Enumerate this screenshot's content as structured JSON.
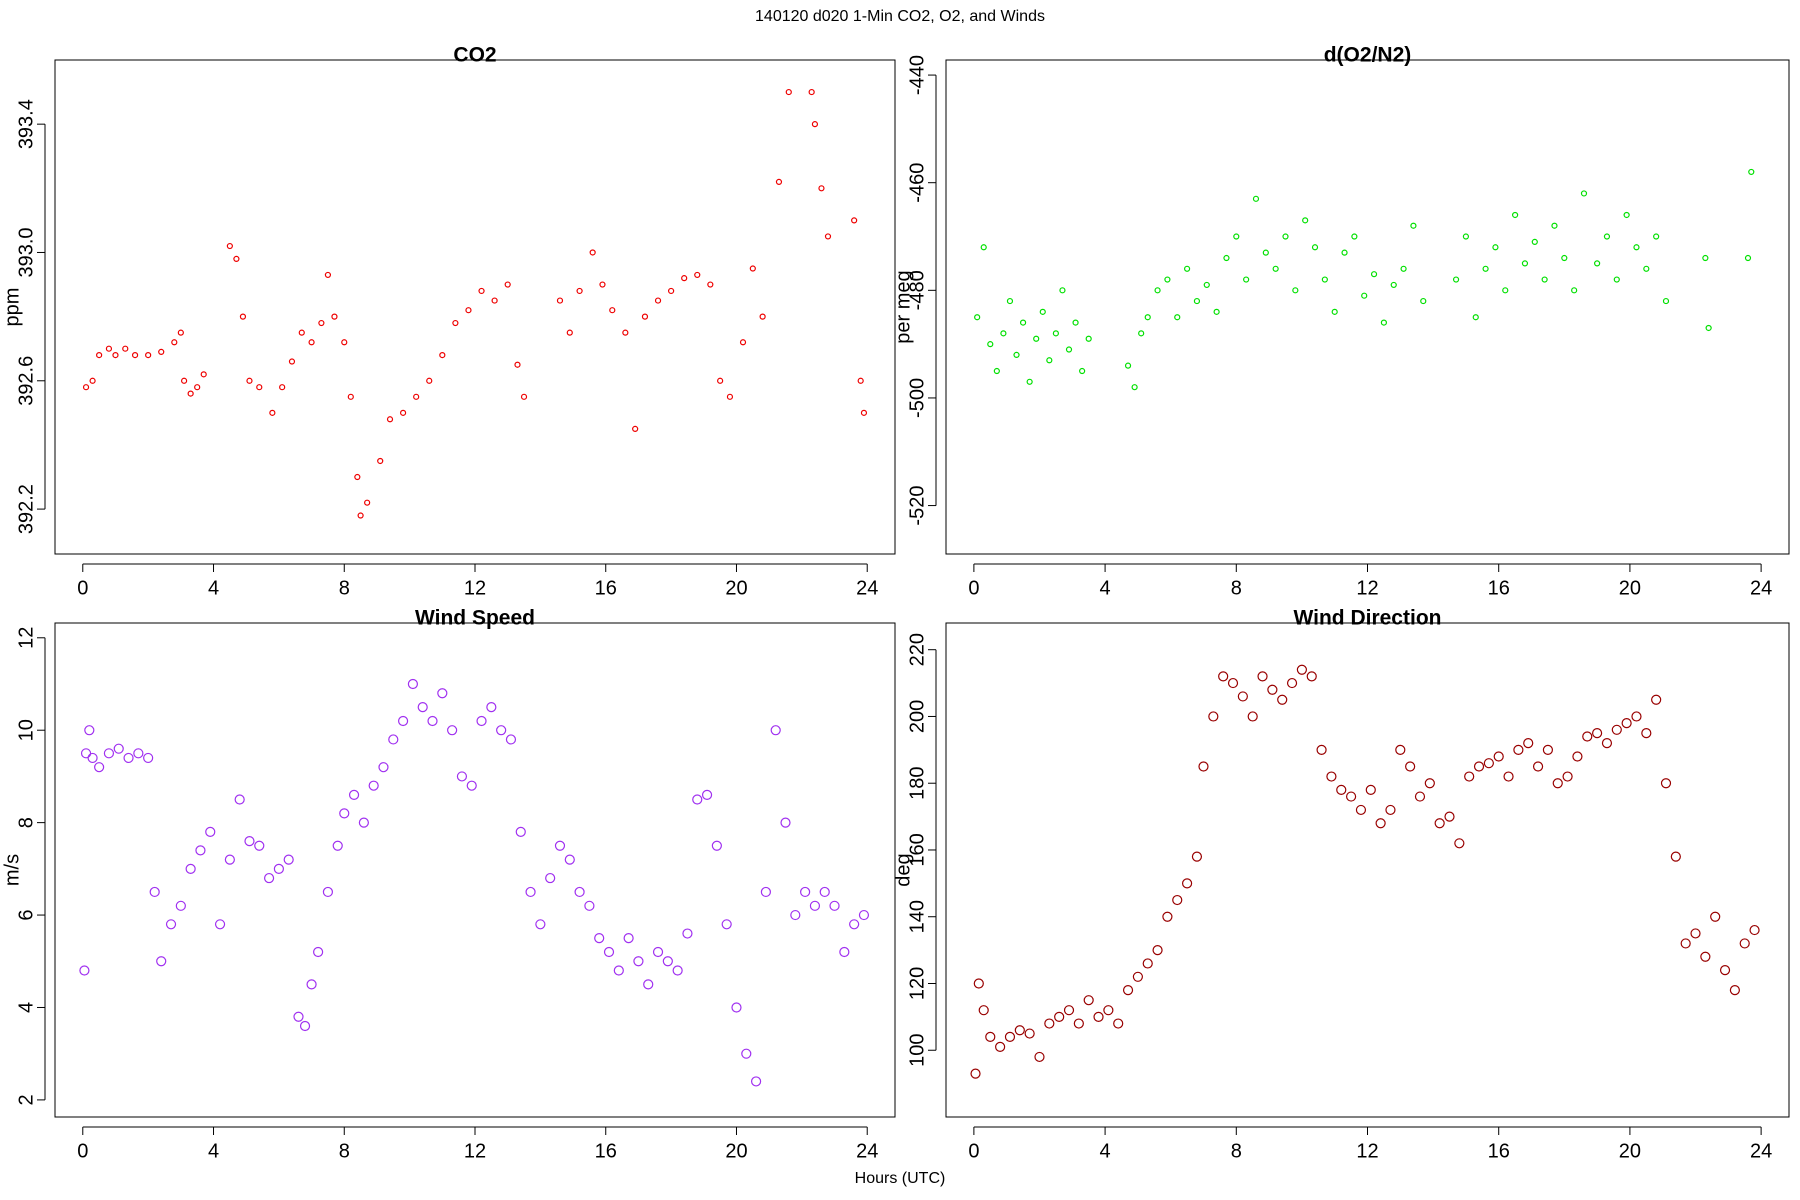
{
  "title": "140120   d020   1-Min CO2, O2, and Winds",
  "x_label": "Hours (UTC)",
  "chart_data": [
    {
      "type": "scatter",
      "title": "CO2",
      "y_label": "ppm",
      "color": "#ee0000",
      "xlim": [
        -0.85,
        24.85
      ],
      "xticks": [
        0,
        4,
        8,
        12,
        16,
        20,
        24
      ],
      "ylim": [
        392.06,
        393.6
      ],
      "yticks": [
        392.2,
        392.6,
        {
          "value": 393,
          "label": "393.0"
        },
        393.4
      ],
      "x": [
        0.1,
        0.3,
        0.5,
        0.8,
        1.0,
        1.3,
        1.6,
        2.0,
        2.4,
        2.8,
        3.0,
        3.1,
        3.3,
        3.5,
        3.7,
        4.5,
        4.7,
        4.9,
        5.1,
        5.4,
        5.8,
        6.1,
        6.4,
        6.7,
        7.0,
        7.3,
        7.5,
        7.7,
        8.0,
        8.2,
        8.4,
        8.5,
        8.7,
        9.1,
        9.4,
        9.8,
        10.2,
        10.6,
        11.0,
        11.4,
        11.8,
        12.2,
        12.6,
        13.0,
        13.3,
        13.5,
        14.6,
        14.9,
        15.2,
        15.6,
        15.9,
        16.2,
        16.6,
        16.9,
        17.2,
        17.6,
        18.0,
        18.4,
        18.8,
        19.2,
        19.5,
        19.8,
        20.2,
        20.5,
        20.8,
        21.3,
        21.6,
        22.3,
        22.4,
        22.6,
        22.8,
        23.6,
        23.8,
        23.9
      ],
      "values": [
        392.58,
        392.6,
        392.68,
        392.7,
        392.68,
        392.7,
        392.68,
        392.68,
        392.69,
        392.72,
        392.75,
        392.6,
        392.56,
        392.58,
        392.62,
        393.02,
        392.98,
        392.8,
        392.6,
        392.58,
        392.5,
        392.58,
        392.66,
        392.75,
        392.72,
        392.78,
        392.93,
        392.8,
        392.72,
        392.55,
        392.3,
        392.18,
        392.22,
        392.35,
        392.48,
        392.5,
        392.55,
        392.6,
        392.68,
        392.78,
        392.82,
        392.88,
        392.85,
        392.9,
        392.65,
        392.55,
        392.85,
        392.75,
        392.88,
        393.0,
        392.9,
        392.82,
        392.75,
        392.45,
        392.8,
        392.85,
        392.88,
        392.92,
        392.93,
        392.9,
        392.6,
        392.55,
        392.72,
        392.95,
        392.8,
        393.22,
        393.5,
        393.5,
        393.4,
        393.2,
        393.05,
        393.1,
        392.6,
        392.5
      ]
    },
    {
      "type": "scatter",
      "title": "d(O2/N2)",
      "y_label": "per meg",
      "color": "#00e000",
      "xlim": [
        -0.85,
        24.85
      ],
      "xticks": [
        0,
        4,
        8,
        12,
        16,
        20,
        24
      ],
      "ylim": [
        -529,
        -437.2
      ],
      "yticks": [
        -520,
        -500,
        -480,
        -460,
        -440
      ],
      "x": [
        0.1,
        0.3,
        0.5,
        0.7,
        0.9,
        1.1,
        1.3,
        1.5,
        1.7,
        1.9,
        2.1,
        2.3,
        2.5,
        2.7,
        2.9,
        3.1,
        3.3,
        3.5,
        4.7,
        4.9,
        5.1,
        5.3,
        5.6,
        5.9,
        6.2,
        6.5,
        6.8,
        7.1,
        7.4,
        7.7,
        8.0,
        8.3,
        8.6,
        8.9,
        9.2,
        9.5,
        9.8,
        10.1,
        10.4,
        10.7,
        11.0,
        11.3,
        11.6,
        11.9,
        12.2,
        12.5,
        12.8,
        13.1,
        13.4,
        13.7,
        14.7,
        15.0,
        15.3,
        15.6,
        15.9,
        16.2,
        16.5,
        16.8,
        17.1,
        17.4,
        17.7,
        18.0,
        18.3,
        18.6,
        19.0,
        19.3,
        19.6,
        19.9,
        20.2,
        20.5,
        20.8,
        21.1,
        22.3,
        22.4,
        23.6,
        23.7
      ],
      "values": [
        -485,
        -472,
        -490,
        -495,
        -488,
        -482,
        -492,
        -486,
        -497,
        -489,
        -484,
        -493,
        -488,
        -480,
        -491,
        -486,
        -495,
        -489,
        -494,
        -498,
        -488,
        -485,
        -480,
        -478,
        -485,
        -476,
        -482,
        -479,
        -484,
        -474,
        -470,
        -478,
        -463,
        -473,
        -476,
        -470,
        -480,
        -467,
        -472,
        -478,
        -484,
        -473,
        -470,
        -481,
        -477,
        -486,
        -479,
        -476,
        -468,
        -482,
        -478,
        -470,
        -485,
        -476,
        -472,
        -480,
        -466,
        -475,
        -471,
        -478,
        -468,
        -474,
        -480,
        -462,
        -475,
        -470,
        -478,
        -466,
        -472,
        -476,
        -470,
        -482,
        -474,
        -487,
        -474,
        -458
      ]
    },
    {
      "type": "scatter",
      "title": "Wind Speed",
      "y_label": "m/s",
      "color": "#a030f0",
      "xlim": [
        -0.85,
        24.85
      ],
      "xticks": [
        0,
        4,
        8,
        12,
        16,
        20,
        24
      ],
      "ylim": [
        1.63,
        12.32
      ],
      "yticks": [
        2,
        4,
        6,
        8,
        10,
        12
      ],
      "x": [
        0.05,
        0.1,
        0.2,
        0.3,
        0.5,
        0.8,
        1.1,
        1.4,
        1.7,
        2.0,
        2.2,
        2.4,
        2.7,
        3.0,
        3.3,
        3.6,
        3.9,
        4.2,
        4.5,
        4.8,
        5.1,
        5.4,
        5.7,
        6.0,
        6.3,
        6.6,
        6.8,
        7.0,
        7.2,
        7.5,
        7.8,
        8.0,
        8.3,
        8.6,
        8.9,
        9.2,
        9.5,
        9.8,
        10.1,
        10.4,
        10.7,
        11.0,
        11.3,
        11.6,
        11.9,
        12.2,
        12.5,
        12.8,
        13.1,
        13.4,
        13.7,
        14.0,
        14.3,
        14.6,
        14.9,
        15.2,
        15.5,
        15.8,
        16.1,
        16.4,
        16.7,
        17.0,
        17.3,
        17.6,
        17.9,
        18.2,
        18.5,
        18.8,
        19.1,
        19.4,
        19.7,
        20.0,
        20.3,
        20.6,
        20.9,
        21.2,
        21.5,
        21.8,
        22.1,
        22.4,
        22.7,
        23.0,
        23.3,
        23.6,
        23.9
      ],
      "values": [
        4.8,
        9.5,
        10.0,
        9.4,
        9.2,
        9.5,
        9.6,
        9.4,
        9.5,
        9.4,
        6.5,
        5.0,
        5.8,
        6.2,
        7.0,
        7.4,
        7.8,
        5.8,
        7.2,
        8.5,
        7.6,
        7.5,
        6.8,
        7.0,
        7.2,
        3.8,
        3.6,
        4.5,
        5.2,
        6.5,
        7.5,
        8.2,
        8.6,
        8.0,
        8.8,
        9.2,
        9.8,
        10.2,
        11.0,
        10.5,
        10.2,
        10.8,
        10.0,
        9.0,
        8.8,
        10.2,
        10.5,
        10.0,
        9.8,
        7.8,
        6.5,
        5.8,
        6.8,
        7.5,
        7.2,
        6.5,
        6.2,
        5.5,
        5.2,
        4.8,
        5.5,
        5.0,
        4.5,
        5.2,
        5.0,
        4.8,
        5.6,
        8.5,
        8.6,
        7.5,
        5.8,
        4.0,
        3.0,
        2.4,
        6.5,
        10.0,
        8.0,
        6.0,
        6.5,
        6.2,
        6.5,
        6.2,
        5.2,
        5.8,
        6.0
      ]
    },
    {
      "type": "scatter",
      "title": "Wind Direction",
      "y_label": "deg",
      "color": "#990000",
      "xlim": [
        -0.85,
        24.85
      ],
      "xticks": [
        0,
        4,
        8,
        12,
        16,
        20,
        24
      ],
      "ylim": [
        80,
        228
      ],
      "yticks": [
        100,
        120,
        140,
        160,
        180,
        200,
        220
      ],
      "x": [
        0.05,
        0.15,
        0.3,
        0.5,
        0.8,
        1.1,
        1.4,
        1.7,
        2.0,
        2.3,
        2.6,
        2.9,
        3.2,
        3.5,
        3.8,
        4.1,
        4.4,
        4.7,
        5.0,
        5.3,
        5.6,
        5.9,
        6.2,
        6.5,
        6.8,
        7.0,
        7.3,
        7.6,
        7.9,
        8.2,
        8.5,
        8.8,
        9.1,
        9.4,
        9.7,
        10.0,
        10.3,
        10.6,
        10.9,
        11.2,
        11.5,
        11.8,
        12.1,
        12.4,
        12.7,
        13.0,
        13.3,
        13.6,
        13.9,
        14.2,
        14.5,
        14.8,
        15.1,
        15.4,
        15.7,
        16.0,
        16.3,
        16.6,
        16.9,
        17.2,
        17.5,
        17.8,
        18.1,
        18.4,
        18.7,
        19.0,
        19.3,
        19.6,
        19.9,
        20.2,
        20.5,
        20.8,
        21.1,
        21.4,
        21.7,
        22.0,
        22.3,
        22.6,
        22.9,
        23.2,
        23.5,
        23.8
      ],
      "values": [
        93,
        120,
        112,
        104,
        101,
        104,
        106,
        105,
        98,
        108,
        110,
        112,
        108,
        115,
        110,
        112,
        108,
        118,
        122,
        126,
        130,
        140,
        145,
        150,
        158,
        185,
        200,
        212,
        210,
        206,
        200,
        212,
        208,
        205,
        210,
        214,
        212,
        190,
        182,
        178,
        176,
        172,
        178,
        168,
        172,
        190,
        185,
        176,
        180,
        168,
        170,
        162,
        182,
        185,
        186,
        188,
        182,
        190,
        192,
        185,
        190,
        180,
        182,
        188,
        194,
        195,
        192,
        196,
        198,
        200,
        195,
        205,
        180,
        158,
        132,
        135,
        128,
        140,
        124,
        118,
        132,
        136
      ]
    }
  ]
}
